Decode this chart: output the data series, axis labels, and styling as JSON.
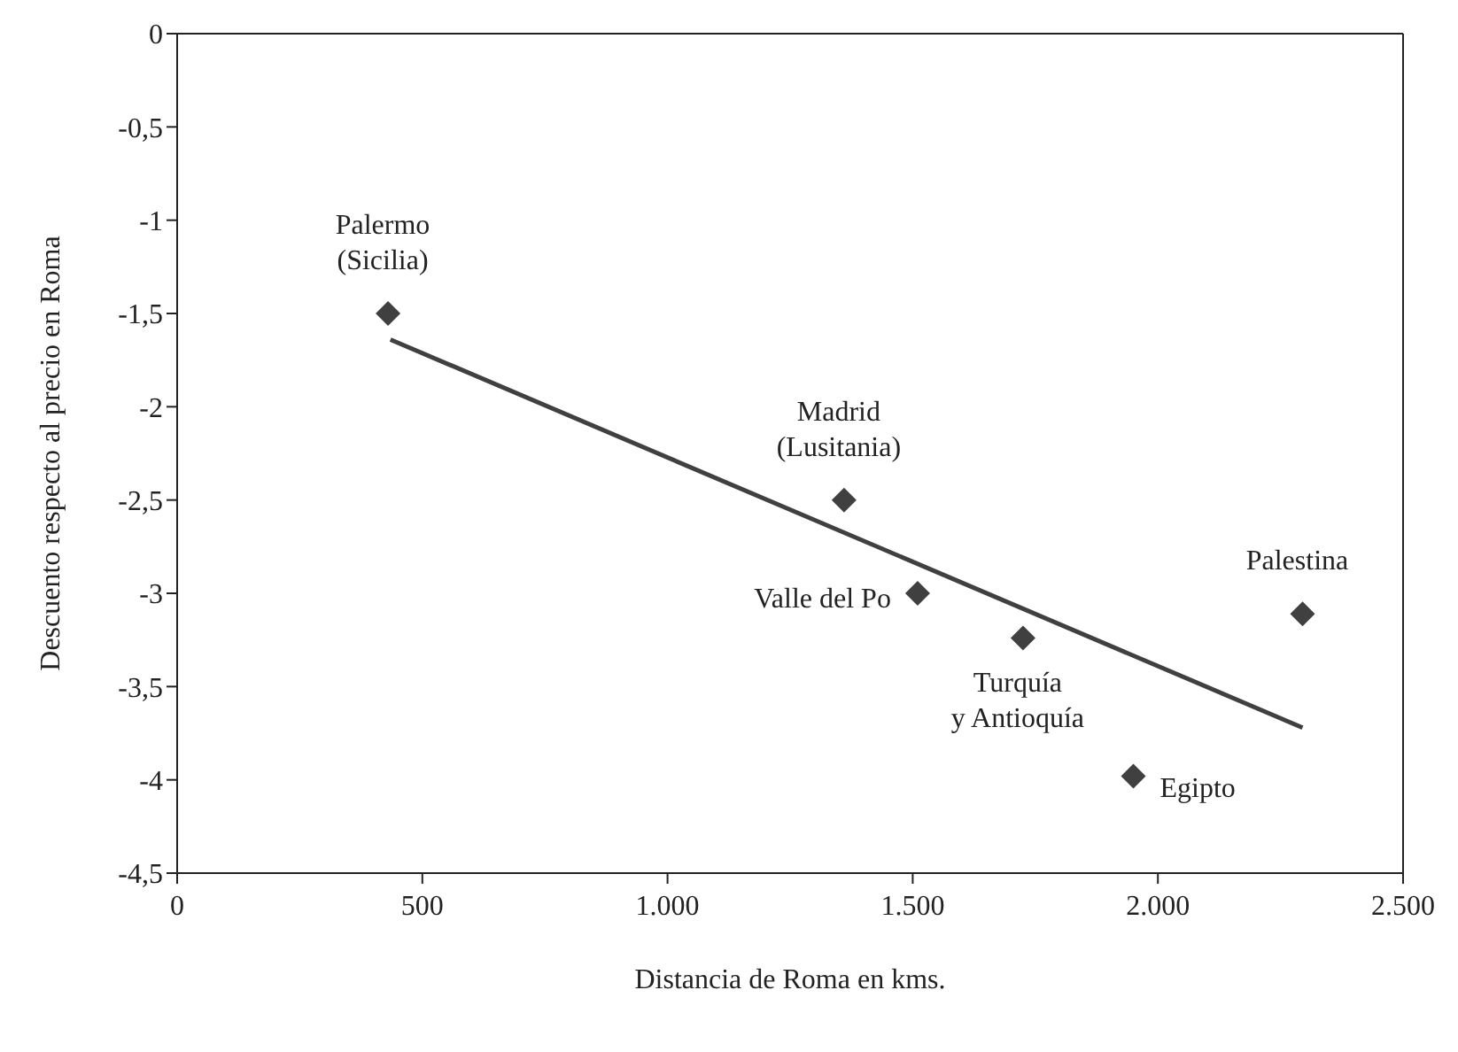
{
  "chart_data": {
    "type": "scatter",
    "xlabel": "Distancia de Roma en kms.",
    "ylabel": "Descuento respecto al precio en Roma",
    "xlim": [
      0,
      2500
    ],
    "ylim": [
      -4.5,
      0
    ],
    "xticks": [
      0,
      500,
      {
        "value": 1000,
        "label": "1.000"
      },
      {
        "value": 1500,
        "label": "1.500"
      },
      {
        "value": 2000,
        "label": "2.000"
      },
      {
        "value": 2500,
        "label": "2.500"
      }
    ],
    "yticks": [
      0,
      {
        "value": -0.5,
        "label": "-0,5"
      },
      -1,
      {
        "value": -1.5,
        "label": "-1,5"
      },
      -2,
      {
        "value": -2.5,
        "label": "-2,5"
      },
      -3,
      {
        "value": -3.5,
        "label": "-3,5"
      },
      -4,
      {
        "value": -4.5,
        "label": "-4,5"
      }
    ],
    "grid": false,
    "legend": false,
    "marker": "diamond",
    "series": [
      {
        "color": "#404040",
        "x": [
          430,
          1360,
          1510,
          1725,
          1950,
          2295
        ],
        "values": [
          -1.5,
          -2.5,
          -3.0,
          -3.24,
          -3.98,
          -3.11
        ]
      },
      {
        "type": "line",
        "color": "#404040",
        "marker": "none",
        "x": [
          435,
          2295
        ],
        "values": [
          -1.64,
          -3.72
        ]
      }
    ],
    "annotations": [
      {
        "text": "Palermo\n(Sicilia)",
        "x": 430,
        "y": -1.5
      },
      {
        "text": "Madrid\n(Lusitania)",
        "x": 1360,
        "y": -2.5
      },
      {
        "text": "Valle del Po",
        "x": 1510,
        "y": -3.0
      },
      {
        "text": "Turquía\ny Antioquía",
        "x": 1725,
        "y": -3.24
      },
      {
        "text": "Egipto",
        "x": 1950,
        "y": -3.98
      },
      {
        "text": "Palestina",
        "x": 2295,
        "y": -3.11
      }
    ]
  }
}
